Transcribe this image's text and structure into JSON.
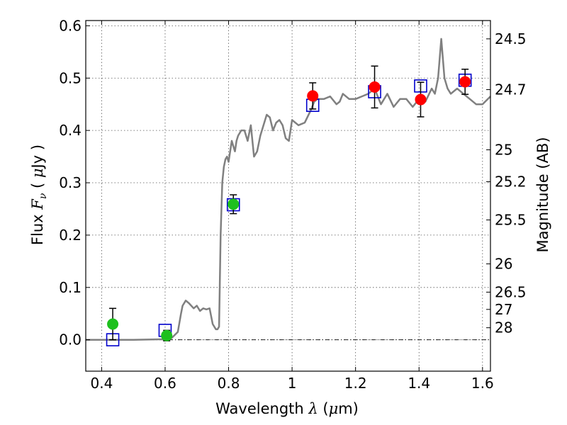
{
  "chart_data": {
    "type": "scatter",
    "xlabel": "Wavelength  λ (μm)",
    "ylabel": "Flux  F_ν  ( μJy )",
    "ylabel_parts": {
      "pre": "Flux  ",
      "sym": "F",
      "sub": "ν",
      "post": "  ( ",
      "mu": "μ",
      "unit": "Jy )"
    },
    "xlabel_parts": {
      "pre": "Wavelength  ",
      "sym": "λ",
      "post": " (",
      "mu": "μ",
      "unit": "m)"
    },
    "y2label": "Magnitude (AB)",
    "xlim": [
      0.35,
      1.625
    ],
    "ylim": [
      -0.06,
      0.61
    ],
    "grid": true,
    "legend": "none",
    "x_ticks": [
      {
        "v": 0.4,
        "label": "0.4"
      },
      {
        "v": 0.6,
        "label": "0.6"
      },
      {
        "v": 0.8,
        "label": "0.8"
      },
      {
        "v": 1.0,
        "label": "1"
      },
      {
        "v": 1.2,
        "label": "1.2"
      },
      {
        "v": 1.4,
        "label": "1.4"
      },
      {
        "v": 1.6,
        "label": "1.6"
      }
    ],
    "y_ticks": [
      {
        "v": 0.0,
        "label": "0.0"
      },
      {
        "v": 0.1,
        "label": "0.1"
      },
      {
        "v": 0.2,
        "label": "0.2"
      },
      {
        "v": 0.3,
        "label": "0.3"
      },
      {
        "v": 0.4,
        "label": "0.4"
      },
      {
        "v": 0.5,
        "label": "0.5"
      },
      {
        "v": 0.6,
        "label": "0.6"
      }
    ],
    "mag_ticks": [
      {
        "v": 0.575,
        "label": "24.5"
      },
      {
        "v": 0.478,
        "label": "24.7"
      },
      {
        "v": 0.363,
        "label": "25"
      },
      {
        "v": 0.302,
        "label": "25.2"
      },
      {
        "v": 0.229,
        "label": "25.5"
      },
      {
        "v": 0.145,
        "label": "26"
      },
      {
        "v": 0.091,
        "label": "26.5"
      },
      {
        "v": 0.058,
        "label": "27"
      },
      {
        "v": 0.023,
        "label": "28"
      }
    ],
    "colors": {
      "model": "#808080",
      "green": "#1ec01e",
      "red": "#ff0000",
      "square": "#0000cc",
      "errorbar": "#000000",
      "grid": "#555555"
    },
    "model_sed": {
      "x": [
        0.35,
        0.5,
        0.6,
        0.62,
        0.64,
        0.65,
        0.655,
        0.665,
        0.675,
        0.69,
        0.7,
        0.71,
        0.72,
        0.73,
        0.74,
        0.75,
        0.76,
        0.765,
        0.77,
        0.775,
        0.78,
        0.785,
        0.79,
        0.795,
        0.8,
        0.81,
        0.815,
        0.82,
        0.825,
        0.83,
        0.84,
        0.85,
        0.86,
        0.87,
        0.88,
        0.89,
        0.9,
        0.91,
        0.92,
        0.93,
        0.94,
        0.95,
        0.96,
        0.97,
        0.98,
        0.99,
        1.0,
        1.02,
        1.04,
        1.06,
        1.07,
        1.08,
        1.1,
        1.12,
        1.14,
        1.15,
        1.16,
        1.18,
        1.2,
        1.22,
        1.24,
        1.26,
        1.28,
        1.3,
        1.32,
        1.34,
        1.36,
        1.38,
        1.4,
        1.42,
        1.44,
        1.45,
        1.46,
        1.47,
        1.48,
        1.49,
        1.5,
        1.52,
        1.54,
        1.56,
        1.58,
        1.6,
        1.625
      ],
      "y": [
        0.0,
        0.0,
        0.001,
        0.003,
        0.015,
        0.05,
        0.065,
        0.075,
        0.07,
        0.06,
        0.065,
        0.055,
        0.06,
        0.058,
        0.06,
        0.03,
        0.02,
        0.02,
        0.025,
        0.2,
        0.3,
        0.33,
        0.345,
        0.35,
        0.34,
        0.38,
        0.37,
        0.36,
        0.38,
        0.39,
        0.4,
        0.4,
        0.38,
        0.41,
        0.35,
        0.36,
        0.39,
        0.41,
        0.43,
        0.425,
        0.4,
        0.415,
        0.42,
        0.41,
        0.385,
        0.38,
        0.42,
        0.41,
        0.415,
        0.44,
        0.455,
        0.46,
        0.46,
        0.465,
        0.45,
        0.455,
        0.47,
        0.46,
        0.46,
        0.465,
        0.47,
        0.48,
        0.45,
        0.47,
        0.445,
        0.46,
        0.46,
        0.445,
        0.46,
        0.455,
        0.48,
        0.47,
        0.5,
        0.575,
        0.5,
        0.48,
        0.47,
        0.48,
        0.47,
        0.46,
        0.45,
        0.45,
        0.465
      ]
    },
    "green_points": [
      {
        "x": 0.435,
        "y": 0.03,
        "err": 0.03
      },
      {
        "x": 0.605,
        "y": 0.008,
        "err": 0.01
      },
      {
        "x": 0.815,
        "y": 0.259,
        "err": 0.018
      }
    ],
    "red_points": [
      {
        "x": 1.065,
        "y": 0.466,
        "err": 0.025
      },
      {
        "x": 1.26,
        "y": 0.483,
        "err": 0.04
      },
      {
        "x": 1.405,
        "y": 0.459,
        "err": 0.033
      },
      {
        "x": 1.545,
        "y": 0.493,
        "err": 0.024
      }
    ],
    "model_squares": [
      {
        "x": 0.435,
        "y": 0.0
      },
      {
        "x": 0.6,
        "y": 0.018
      },
      {
        "x": 0.815,
        "y": 0.258
      },
      {
        "x": 1.065,
        "y": 0.448
      },
      {
        "x": 1.26,
        "y": 0.474
      },
      {
        "x": 1.405,
        "y": 0.485
      },
      {
        "x": 1.545,
        "y": 0.496
      }
    ]
  }
}
